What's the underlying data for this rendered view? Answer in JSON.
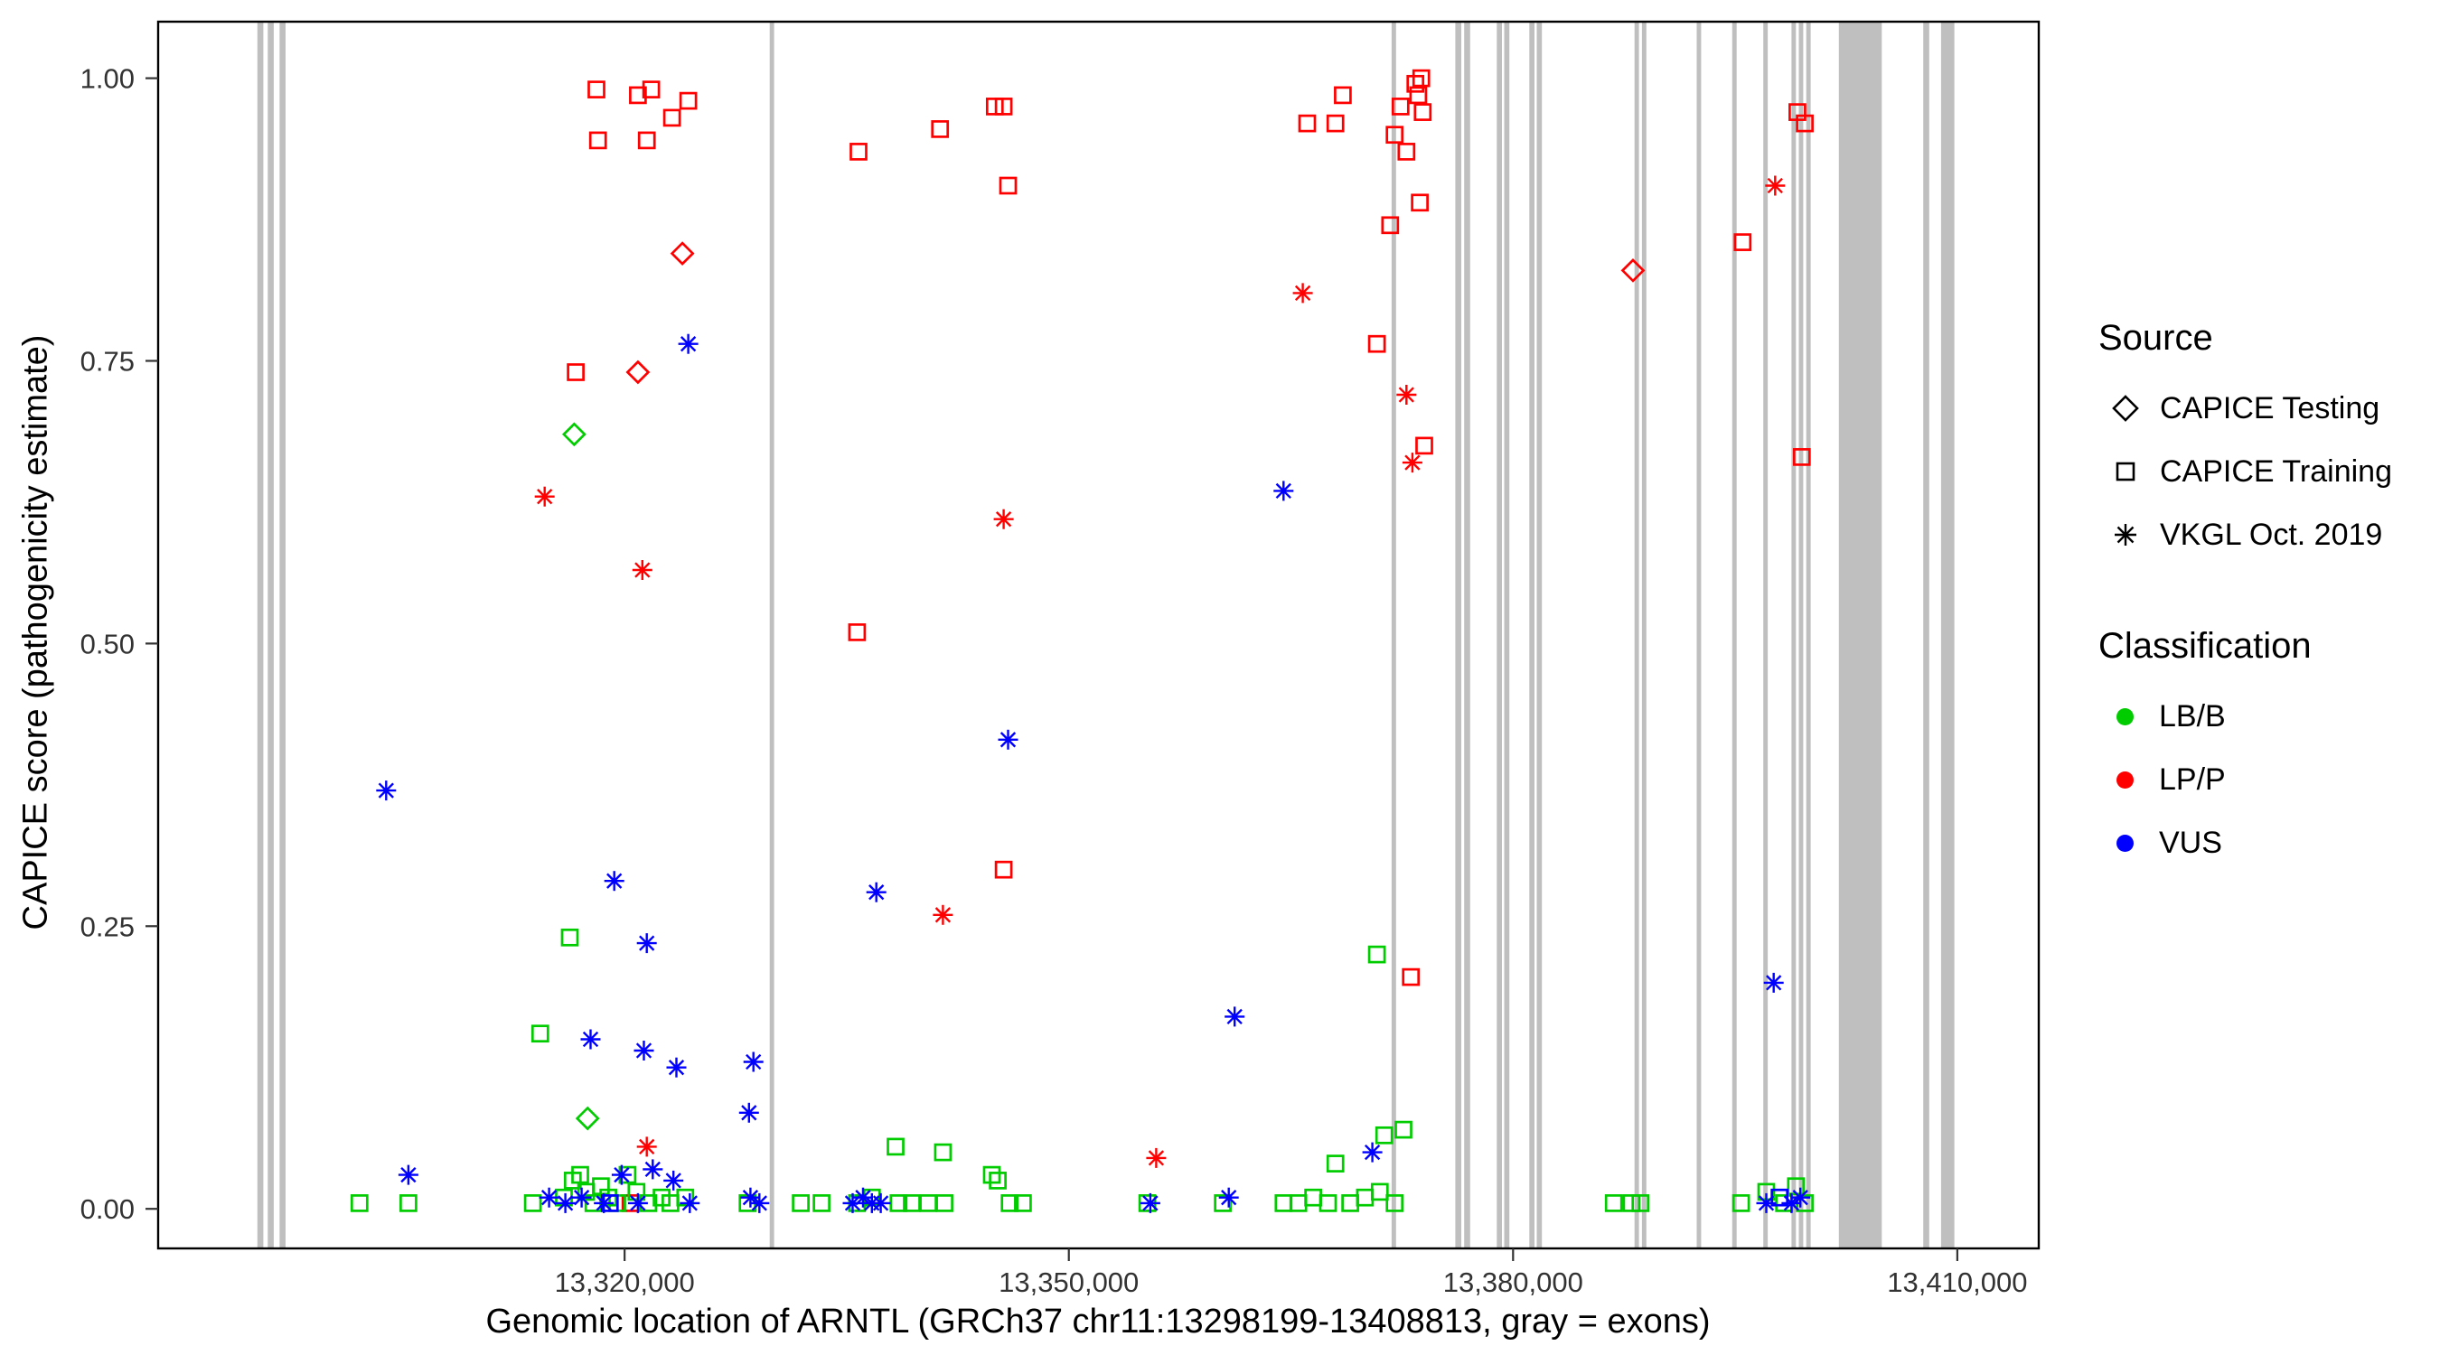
{
  "colors": {
    "exon": "#BFBFBF",
    "panel_border": "#000000",
    "axis_text": "#333333",
    "lbb_green": "#00CC00",
    "lpp_red": "#FF0000",
    "vus_blue": "#0000FF"
  },
  "legend": {
    "source": {
      "title": "Source",
      "items": [
        {
          "label": "CAPICE Testing",
          "shape": "diamond"
        },
        {
          "label": "CAPICE Training",
          "shape": "square"
        },
        {
          "label": "VKGL Oct. 2019",
          "shape": "asterisk"
        }
      ]
    },
    "classification": {
      "title": "Classification",
      "items": [
        {
          "label": "LB/B",
          "color": "#00CC00"
        },
        {
          "label": "LP/P",
          "color": "#FF0000"
        },
        {
          "label": "VUS",
          "color": "#0000FF"
        }
      ]
    }
  },
  "chart_data": {
    "type": "scatter",
    "title": "",
    "xlabel": "Genomic location of ARNTL (GRCh37 chr11:13298199-13408813, gray = exons)",
    "ylabel": "CAPICE score (pathogenicity estimate)",
    "xlim": [
      13288500,
      13415500
    ],
    "ylim": [
      -0.035,
      1.05
    ],
    "grid": false,
    "legend_position": "right",
    "x_ticks": [
      {
        "value": 13320000,
        "label": "13,320,000"
      },
      {
        "value": 13350000,
        "label": "13,350,000"
      },
      {
        "value": 13380000,
        "label": "13,380,000"
      },
      {
        "value": 13410000,
        "label": "13,410,000"
      }
    ],
    "y_ticks": [
      {
        "value": 0.0,
        "label": "0.00"
      },
      {
        "value": 0.25,
        "label": "0.25"
      },
      {
        "value": 0.5,
        "label": "0.50"
      },
      {
        "value": 0.75,
        "label": "0.75"
      },
      {
        "value": 1.0,
        "label": "1.00"
      }
    ],
    "source_shapes": {
      "testing": "diamond",
      "training": "square",
      "vkgl": "asterisk"
    },
    "source_labels": {
      "testing": "CAPICE Testing",
      "training": "CAPICE Training",
      "vkgl": "VKGL Oct. 2019"
    },
    "classification_colors": {
      "LB/B": "#00CC00",
      "LP/P": "#FF0000",
      "VUS": "#0000FF"
    },
    "exon_note": "gray vertical bars mark exon locations",
    "exons": [
      [
        13295200,
        13295600
      ],
      [
        13295900,
        13296300
      ],
      [
        13296700,
        13297100
      ],
      [
        13329800,
        13330100
      ],
      [
        13371800,
        13372100
      ],
      [
        13376100,
        13376500
      ],
      [
        13376700,
        13377100
      ],
      [
        13378900,
        13379250
      ],
      [
        13379400,
        13379750
      ],
      [
        13381100,
        13381450
      ],
      [
        13381600,
        13381950
      ],
      [
        13388200,
        13388500
      ],
      [
        13388700,
        13389000
      ],
      [
        13392400,
        13392700
      ],
      [
        13394800,
        13395100
      ],
      [
        13396900,
        13397200
      ],
      [
        13398800,
        13399100
      ],
      [
        13399300,
        13399600
      ],
      [
        13399800,
        13400100
      ],
      [
        13402000,
        13404900
      ],
      [
        13407700,
        13408100
      ],
      [
        13408900,
        13409800
      ]
    ],
    "points": [
      [
        13316700,
        0.74,
        "training",
        "LP/P"
      ],
      [
        13318100,
        0.99,
        "training",
        "LP/P"
      ],
      [
        13318200,
        0.945,
        "training",
        "LP/P"
      ],
      [
        13320900,
        0.985,
        "training",
        "LP/P"
      ],
      [
        13321500,
        0.945,
        "training",
        "LP/P"
      ],
      [
        13321800,
        0.99,
        "training",
        "LP/P"
      ],
      [
        13323200,
        0.965,
        "training",
        "LP/P"
      ],
      [
        13324300,
        0.98,
        "training",
        "LP/P"
      ],
      [
        13335700,
        0.51,
        "training",
        "LP/P"
      ],
      [
        13335800,
        0.935,
        "training",
        "LP/P"
      ],
      [
        13341300,
        0.955,
        "training",
        "LP/P"
      ],
      [
        13345000,
        0.975,
        "training",
        "LP/P"
      ],
      [
        13345600,
        0.975,
        "training",
        "LP/P"
      ],
      [
        13345900,
        0.905,
        "training",
        "LP/P"
      ],
      [
        13345600,
        0.3,
        "training",
        "LP/P"
      ],
      [
        13366100,
        0.96,
        "training",
        "LP/P"
      ],
      [
        13368000,
        0.96,
        "training",
        "LP/P"
      ],
      [
        13368500,
        0.985,
        "training",
        "LP/P"
      ],
      [
        13370800,
        0.765,
        "training",
        "LP/P"
      ],
      [
        13371700,
        0.87,
        "training",
        "LP/P"
      ],
      [
        13372000,
        0.95,
        "training",
        "LP/P"
      ],
      [
        13372400,
        0.975,
        "training",
        "LP/P"
      ],
      [
        13372800,
        0.935,
        "training",
        "LP/P"
      ],
      [
        13373400,
        0.995,
        "training",
        "LP/P"
      ],
      [
        13373600,
        0.985,
        "training",
        "LP/P"
      ],
      [
        13373700,
        0.89,
        "training",
        "LP/P"
      ],
      [
        13373800,
        1.0,
        "training",
        "LP/P"
      ],
      [
        13373900,
        0.97,
        "training",
        "LP/P"
      ],
      [
        13374000,
        0.675,
        "training",
        "LP/P"
      ],
      [
        13373100,
        0.205,
        "training",
        "LP/P"
      ],
      [
        13395500,
        0.855,
        "training",
        "LP/P"
      ],
      [
        13399200,
        0.97,
        "training",
        "LP/P"
      ],
      [
        13399700,
        0.96,
        "training",
        "LP/P"
      ],
      [
        13399500,
        0.665,
        "training",
        "LP/P"
      ],
      [
        13320400,
        0.005,
        "training",
        "LP/P"
      ],
      [
        13323900,
        0.845,
        "testing",
        "LP/P"
      ],
      [
        13320900,
        0.74,
        "testing",
        "LP/P"
      ],
      [
        13388100,
        0.83,
        "testing",
        "LP/P"
      ],
      [
        13314600,
        0.63,
        "vkgl",
        "LP/P"
      ],
      [
        13321200,
        0.565,
        "vkgl",
        "LP/P"
      ],
      [
        13341500,
        0.26,
        "vkgl",
        "LP/P"
      ],
      [
        13345600,
        0.61,
        "vkgl",
        "LP/P"
      ],
      [
        13365800,
        0.81,
        "vkgl",
        "LP/P"
      ],
      [
        13372800,
        0.72,
        "vkgl",
        "LP/P"
      ],
      [
        13373200,
        0.66,
        "vkgl",
        "LP/P"
      ],
      [
        13397700,
        0.905,
        "vkgl",
        "LP/P"
      ],
      [
        13355900,
        0.045,
        "vkgl",
        "LP/P"
      ],
      [
        13321500,
        0.055,
        "vkgl",
        "LP/P"
      ],
      [
        13316600,
        0.685,
        "testing",
        "LB/B"
      ],
      [
        13317500,
        0.08,
        "testing",
        "LB/B"
      ],
      [
        13316300,
        0.24,
        "training",
        "LB/B"
      ],
      [
        13314300,
        0.155,
        "training",
        "LB/B"
      ],
      [
        13370800,
        0.225,
        "training",
        "LB/B"
      ],
      [
        13371300,
        0.065,
        "training",
        "LB/B"
      ],
      [
        13338300,
        0.055,
        "training",
        "LB/B"
      ],
      [
        13341500,
        0.05,
        "training",
        "LB/B"
      ],
      [
        13302100,
        0.005,
        "training",
        "LB/B"
      ],
      [
        13305400,
        0.005,
        "training",
        "LB/B"
      ],
      [
        13313800,
        0.005,
        "training",
        "LB/B"
      ],
      [
        13315900,
        0.01,
        "training",
        "LB/B"
      ],
      [
        13316500,
        0.025,
        "training",
        "LB/B"
      ],
      [
        13317000,
        0.03,
        "training",
        "LB/B"
      ],
      [
        13317400,
        0.015,
        "training",
        "LB/B"
      ],
      [
        13317900,
        0.005,
        "training",
        "LB/B"
      ],
      [
        13318400,
        0.02,
        "training",
        "LB/B"
      ],
      [
        13318900,
        0.01,
        "training",
        "LB/B"
      ],
      [
        13319500,
        0.005,
        "training",
        "LB/B"
      ],
      [
        13320200,
        0.03,
        "training",
        "LB/B"
      ],
      [
        13320800,
        0.015,
        "training",
        "LB/B"
      ],
      [
        13321600,
        0.005,
        "training",
        "LB/B"
      ],
      [
        13322500,
        0.01,
        "training",
        "LB/B"
      ],
      [
        13323100,
        0.005,
        "training",
        "LB/B"
      ],
      [
        13324100,
        0.01,
        "training",
        "LB/B"
      ],
      [
        13328300,
        0.005,
        "training",
        "LB/B"
      ],
      [
        13331900,
        0.005,
        "training",
        "LB/B"
      ],
      [
        13333300,
        0.005,
        "training",
        "LB/B"
      ],
      [
        13335700,
        0.005,
        "training",
        "LB/B"
      ],
      [
        13336700,
        0.01,
        "training",
        "LB/B"
      ],
      [
        13338500,
        0.005,
        "training",
        "LB/B"
      ],
      [
        13339400,
        0.005,
        "training",
        "LB/B"
      ],
      [
        13340500,
        0.005,
        "training",
        "LB/B"
      ],
      [
        13341600,
        0.005,
        "training",
        "LB/B"
      ],
      [
        13344800,
        0.03,
        "training",
        "LB/B"
      ],
      [
        13345200,
        0.025,
        "training",
        "LB/B"
      ],
      [
        13346000,
        0.005,
        "training",
        "LB/B"
      ],
      [
        13346900,
        0.005,
        "training",
        "LB/B"
      ],
      [
        13355300,
        0.005,
        "training",
        "LB/B"
      ],
      [
        13360400,
        0.005,
        "training",
        "LB/B"
      ],
      [
        13364500,
        0.005,
        "training",
        "LB/B"
      ],
      [
        13365500,
        0.005,
        "training",
        "LB/B"
      ],
      [
        13366500,
        0.01,
        "training",
        "LB/B"
      ],
      [
        13367500,
        0.005,
        "training",
        "LB/B"
      ],
      [
        13368000,
        0.04,
        "training",
        "LB/B"
      ],
      [
        13369000,
        0.005,
        "training",
        "LB/B"
      ],
      [
        13370000,
        0.01,
        "training",
        "LB/B"
      ],
      [
        13371000,
        0.015,
        "training",
        "LB/B"
      ],
      [
        13372000,
        0.005,
        "training",
        "LB/B"
      ],
      [
        13372600,
        0.07,
        "training",
        "LB/B"
      ],
      [
        13386800,
        0.005,
        "training",
        "LB/B"
      ],
      [
        13388000,
        0.005,
        "training",
        "LB/B"
      ],
      [
        13388600,
        0.005,
        "training",
        "LB/B"
      ],
      [
        13395400,
        0.005,
        "training",
        "LB/B"
      ],
      [
        13397100,
        0.015,
        "training",
        "LB/B"
      ],
      [
        13398300,
        0.005,
        "training",
        "LB/B"
      ],
      [
        13399100,
        0.02,
        "training",
        "LB/B"
      ],
      [
        13399700,
        0.005,
        "training",
        "LB/B"
      ],
      [
        13303900,
        0.37,
        "vkgl",
        "VUS"
      ],
      [
        13324300,
        0.765,
        "vkgl",
        "VUS"
      ],
      [
        13319300,
        0.29,
        "vkgl",
        "VUS"
      ],
      [
        13321500,
        0.235,
        "vkgl",
        "VUS"
      ],
      [
        13321300,
        0.14,
        "vkgl",
        "VUS"
      ],
      [
        13323500,
        0.125,
        "vkgl",
        "VUS"
      ],
      [
        13328700,
        0.13,
        "vkgl",
        "VUS"
      ],
      [
        13328400,
        0.085,
        "vkgl",
        "VUS"
      ],
      [
        13337000,
        0.28,
        "vkgl",
        "VUS"
      ],
      [
        13345900,
        0.415,
        "vkgl",
        "VUS"
      ],
      [
        13364500,
        0.635,
        "vkgl",
        "VUS"
      ],
      [
        13361200,
        0.17,
        "vkgl",
        "VUS"
      ],
      [
        13397600,
        0.2,
        "vkgl",
        "VUS"
      ],
      [
        13317700,
        0.15,
        "vkgl",
        "VUS"
      ],
      [
        13305400,
        0.03,
        "vkgl",
        "VUS"
      ],
      [
        13314900,
        0.01,
        "vkgl",
        "VUS"
      ],
      [
        13316000,
        0.005,
        "vkgl",
        "VUS"
      ],
      [
        13317100,
        0.01,
        "vkgl",
        "VUS"
      ],
      [
        13318600,
        0.005,
        "vkgl",
        "VUS"
      ],
      [
        13319800,
        0.03,
        "vkgl",
        "VUS"
      ],
      [
        13320900,
        0.005,
        "vkgl",
        "VUS"
      ],
      [
        13321900,
        0.035,
        "vkgl",
        "VUS"
      ],
      [
        13323300,
        0.025,
        "vkgl",
        "VUS"
      ],
      [
        13324400,
        0.005,
        "vkgl",
        "VUS"
      ],
      [
        13328500,
        0.01,
        "vkgl",
        "VUS"
      ],
      [
        13329100,
        0.005,
        "vkgl",
        "VUS"
      ],
      [
        13335400,
        0.005,
        "vkgl",
        "VUS"
      ],
      [
        13336100,
        0.01,
        "vkgl",
        "VUS"
      ],
      [
        13336700,
        0.005,
        "vkgl",
        "VUS"
      ],
      [
        13337300,
        0.005,
        "vkgl",
        "VUS"
      ],
      [
        13355500,
        0.005,
        "vkgl",
        "VUS"
      ],
      [
        13360800,
        0.01,
        "vkgl",
        "VUS"
      ],
      [
        13370500,
        0.05,
        "vkgl",
        "VUS"
      ],
      [
        13397100,
        0.005,
        "vkgl",
        "VUS"
      ],
      [
        13398800,
        0.005,
        "vkgl",
        "VUS"
      ],
      [
        13399400,
        0.01,
        "vkgl",
        "VUS"
      ],
      [
        13319000,
        0.005,
        "training",
        "VUS"
      ],
      [
        13398000,
        0.01,
        "training",
        "VUS"
      ]
    ]
  }
}
